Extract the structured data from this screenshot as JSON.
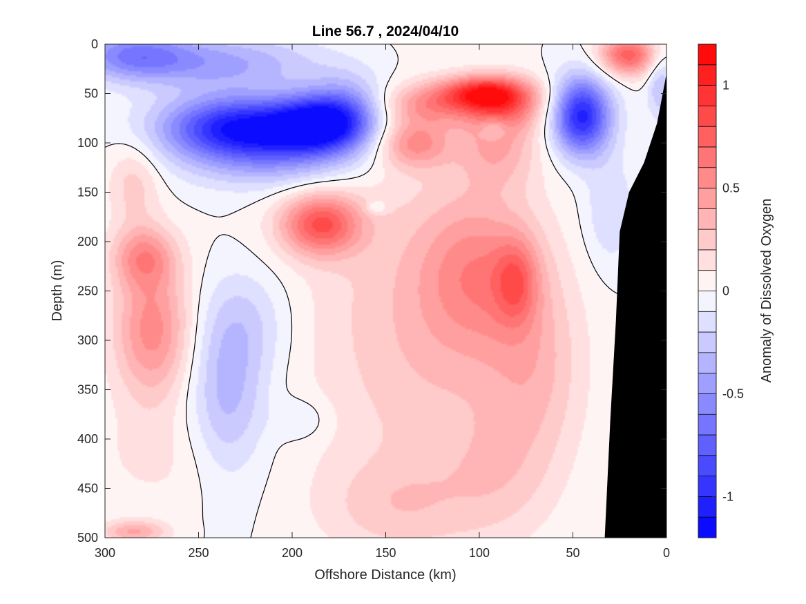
{
  "chart_data": {
    "type": "contour",
    "title": "Line 56.7 , 2024/04/10",
    "xlabel": "Offshore Distance (km)",
    "ylabel": "Depth (m)",
    "xlim": [
      300,
      0
    ],
    "ylim": [
      500,
      0
    ],
    "x_reversed": true,
    "y_reversed": true,
    "xticks": [
      {
        "value": 300,
        "label": "300"
      },
      {
        "value": 250,
        "label": "250"
      },
      {
        "value": 200,
        "label": "200"
      },
      {
        "value": 150,
        "label": "150"
      },
      {
        "value": 100,
        "label": "100"
      },
      {
        "value": 50,
        "label": "50"
      },
      {
        "value": 0,
        "label": "0"
      }
    ],
    "yticks": [
      {
        "value": 0,
        "label": "0"
      },
      {
        "value": 50,
        "label": "50"
      },
      {
        "value": 100,
        "label": "100"
      },
      {
        "value": 150,
        "label": "150"
      },
      {
        "value": 200,
        "label": "200"
      },
      {
        "value": 250,
        "label": "250"
      },
      {
        "value": 300,
        "label": "300"
      },
      {
        "value": 350,
        "label": "350"
      },
      {
        "value": 400,
        "label": "400"
      },
      {
        "value": 450,
        "label": "450"
      },
      {
        "value": 500,
        "label": "500"
      }
    ],
    "colorbar": {
      "label": "Anomaly of Dissolved Oxygen",
      "range": [
        -1.2,
        1.2
      ],
      "levels": 24,
      "ticks": [
        {
          "value": 1,
          "label": "1"
        },
        {
          "value": 0.5,
          "label": "0.5"
        },
        {
          "value": 0,
          "label": "0"
        },
        {
          "value": -0.5,
          "label": "-0.5"
        },
        {
          "value": -1,
          "label": "-1"
        }
      ],
      "colormap": "blue-white-red",
      "negative_color": "#0000ff",
      "positive_color": "#ff0000",
      "neutral_color": "#ffffff"
    },
    "zero_contour": true,
    "bathymetry_color": "#000000",
    "bathymetry": [
      {
        "x": 33,
        "depth": 500
      },
      {
        "x": 30,
        "depth": 380
      },
      {
        "x": 27,
        "depth": 280
      },
      {
        "x": 25,
        "depth": 190
      },
      {
        "x": 20,
        "depth": 150
      },
      {
        "x": 12,
        "depth": 120
      },
      {
        "x": 5,
        "depth": 80
      },
      {
        "x": 0,
        "depth": 30
      },
      {
        "x": 0,
        "depth": 500
      }
    ],
    "features": [
      {
        "x": 285,
        "depth": 10,
        "value": -0.55,
        "sx": 22,
        "sy": 18
      },
      {
        "x": 235,
        "depth": 18,
        "value": -0.4,
        "sx": 35,
        "sy": 20
      },
      {
        "x": 230,
        "depth": 82,
        "value": -0.95,
        "sx": 28,
        "sy": 22
      },
      {
        "x": 185,
        "depth": 80,
        "value": -1.0,
        "sx": 18,
        "sy": 20
      },
      {
        "x": 210,
        "depth": 110,
        "value": -0.45,
        "sx": 35,
        "sy": 25
      },
      {
        "x": 170,
        "depth": 60,
        "value": -0.35,
        "sx": 15,
        "sy": 25
      },
      {
        "x": 45,
        "depth": 72,
        "value": -1.05,
        "sx": 11,
        "sy": 28
      },
      {
        "x": 30,
        "depth": 170,
        "value": -0.2,
        "sx": 10,
        "sy": 40
      },
      {
        "x": 3,
        "depth": 40,
        "value": -0.3,
        "sx": 5,
        "sy": 25
      },
      {
        "x": 235,
        "depth": 360,
        "value": -0.35,
        "sx": 15,
        "sy": 60
      },
      {
        "x": 225,
        "depth": 280,
        "value": -0.2,
        "sx": 18,
        "sy": 40
      },
      {
        "x": 195,
        "depth": 380,
        "value": -0.15,
        "sx": 10,
        "sy": 15
      },
      {
        "x": 20,
        "depth": 10,
        "value": 0.75,
        "sx": 11,
        "sy": 15
      },
      {
        "x": 98,
        "depth": 48,
        "value": 0.75,
        "sx": 16,
        "sy": 12
      },
      {
        "x": 85,
        "depth": 60,
        "value": 0.5,
        "sx": 15,
        "sy": 18
      },
      {
        "x": 135,
        "depth": 100,
        "value": 0.5,
        "sx": 14,
        "sy": 18
      },
      {
        "x": 125,
        "depth": 60,
        "value": 0.45,
        "sx": 20,
        "sy": 15
      },
      {
        "x": 90,
        "depth": 100,
        "value": 0.35,
        "sx": 15,
        "sy": 30
      },
      {
        "x": 185,
        "depth": 182,
        "value": 0.75,
        "sx": 15,
        "sy": 22
      },
      {
        "x": 275,
        "depth": 290,
        "value": 0.55,
        "sx": 15,
        "sy": 50
      },
      {
        "x": 280,
        "depth": 215,
        "value": 0.45,
        "sx": 12,
        "sy": 22
      },
      {
        "x": 285,
        "depth": 140,
        "value": 0.25,
        "sx": 10,
        "sy": 30
      },
      {
        "x": 100,
        "depth": 230,
        "value": 0.4,
        "sx": 22,
        "sy": 55
      },
      {
        "x": 80,
        "depth": 240,
        "value": 0.4,
        "sx": 8,
        "sy": 30
      },
      {
        "x": 120,
        "depth": 320,
        "value": 0.2,
        "sx": 40,
        "sy": 120
      },
      {
        "x": 70,
        "depth": 330,
        "value": 0.25,
        "sx": 18,
        "sy": 70
      },
      {
        "x": 145,
        "depth": 470,
        "value": 0.2,
        "sx": 30,
        "sy": 35
      },
      {
        "x": 90,
        "depth": 440,
        "value": 0.15,
        "sx": 20,
        "sy": 45
      },
      {
        "x": 285,
        "depth": 495,
        "value": 0.4,
        "sx": 12,
        "sy": 8
      },
      {
        "x": 150,
        "depth": 250,
        "value": 0.12,
        "sx": 45,
        "sy": 120
      },
      {
        "x": 270,
        "depth": 420,
        "value": 0.12,
        "sx": 30,
        "sy": 40
      },
      {
        "x": 92,
        "depth": 85,
        "value": -0.25,
        "sx": 5,
        "sy": 8
      },
      {
        "x": 155,
        "depth": 165,
        "value": -0.2,
        "sx": 4,
        "sy": 5
      }
    ]
  }
}
